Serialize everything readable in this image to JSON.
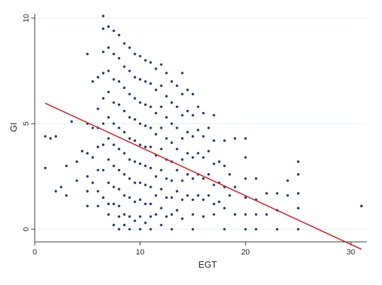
{
  "chart_data": {
    "type": "scatter",
    "title": "",
    "xlabel": "EGT",
    "ylabel": "GI",
    "xlim": [
      0,
      31.5
    ],
    "ylim": [
      -0.6,
      10.2
    ],
    "xticks": [
      0,
      10,
      20,
      30
    ],
    "yticks": [
      0,
      5,
      10
    ],
    "xtick_labels": [
      "0",
      "10",
      "20",
      "30"
    ],
    "ytick_labels": [
      "0",
      "5",
      "10"
    ],
    "grid": true,
    "legend": "none",
    "colors": {
      "points": "#1f3d6b",
      "fit_line": "#d42020",
      "grid": "#e3edf2",
      "axis": "#333333"
    },
    "series": [
      {
        "x": [
          1,
          1,
          1.5,
          2,
          2,
          2.5,
          3,
          3,
          3.5,
          4,
          4,
          4.5,
          5,
          5,
          5,
          5,
          5,
          5,
          5.5,
          5.5,
          5.5,
          5.5,
          6,
          6,
          6,
          6,
          6,
          6,
          6,
          6.5,
          6.5,
          6.5,
          6.5,
          6.5,
          6.5,
          6.5,
          6.5,
          6.5,
          7,
          7,
          7,
          7,
          7,
          7,
          7,
          7,
          7,
          7,
          7.5,
          7.5,
          7.5,
          7.5,
          7.5,
          7.5,
          7.5,
          7.5,
          7.5,
          7.5,
          8,
          8,
          8,
          8,
          8,
          8,
          8,
          8,
          8,
          8,
          8,
          8.5,
          8.5,
          8.5,
          8.5,
          8.5,
          8.5,
          8.5,
          8.5,
          8.5,
          8.5,
          9,
          9,
          9,
          9,
          9,
          9,
          9,
          9,
          9,
          9,
          9.5,
          9.5,
          9.5,
          9.5,
          9.5,
          9.5,
          9.5,
          9.5,
          9.5,
          10,
          10,
          10,
          10,
          10,
          10,
          10,
          10,
          10,
          10,
          10.5,
          10.5,
          10.5,
          10.5,
          10.5,
          10.5,
          10.5,
          10.5,
          10.5,
          11,
          11,
          11,
          11,
          11,
          11,
          11,
          11,
          11,
          11,
          11.5,
          11.5,
          11.5,
          11.5,
          11.5,
          11.5,
          11.5,
          11.5,
          12,
          12,
          12,
          12,
          12,
          12,
          12,
          12,
          12,
          12.5,
          12.5,
          12.5,
          12.5,
          12.5,
          12.5,
          12.5,
          12.5,
          13,
          13,
          13,
          13,
          13,
          13,
          13,
          13,
          13,
          13.5,
          13.5,
          13.5,
          13.5,
          13.5,
          13.5,
          13.5,
          14,
          14,
          14,
          14,
          14,
          14,
          14,
          14,
          14.5,
          14.5,
          14.5,
          14.5,
          14.5,
          14.5,
          15,
          15,
          15,
          15,
          15,
          15,
          15,
          15,
          15.5,
          15.5,
          15.5,
          15.5,
          15.5,
          16,
          16,
          16,
          16,
          16,
          16,
          16.5,
          16.5,
          16.5,
          16.5,
          17,
          17,
          17,
          17,
          17,
          17,
          17.5,
          17.5,
          17.5,
          18,
          18,
          18,
          18,
          18,
          18.5,
          18.5,
          19,
          19,
          19,
          20,
          20,
          20,
          20,
          20,
          20,
          21,
          21,
          21,
          21,
          22,
          22,
          23,
          23,
          23,
          24,
          24,
          25,
          25,
          25,
          25,
          25,
          31,
          31
        ],
        "y": [
          4.4,
          2.9,
          4.3,
          4.4,
          1.8,
          2,
          3,
          1.6,
          5.1,
          3.2,
          2.3,
          3.7,
          8.3,
          5,
          3.6,
          2.5,
          1.8,
          1.1,
          7,
          4.8,
          3.4,
          2.2,
          7.2,
          5.7,
          4.8,
          3.9,
          2.8,
          1.8,
          1.1,
          10.1,
          9.5,
          8.4,
          7.4,
          6.2,
          5,
          4,
          2.8,
          1.5,
          9.6,
          8.6,
          7.5,
          6.5,
          5.3,
          4.3,
          3.3,
          2.2,
          1.2,
          0.7,
          9.4,
          8.3,
          7.1,
          6,
          5,
          4,
          3,
          2,
          1.2,
          0.2,
          9.2,
          8.1,
          7,
          5.9,
          4.8,
          3.8,
          2.8,
          1.9,
          1.1,
          0.6,
          0,
          8.8,
          7.7,
          6.7,
          5.6,
          4.6,
          3.6,
          2.6,
          1.6,
          0.7,
          0.2,
          8.6,
          7.5,
          6.4,
          5.3,
          4.3,
          3.3,
          2.4,
          1.5,
          0.6,
          0,
          8.3,
          7.2,
          6.2,
          5.2,
          4.2,
          3.2,
          2.2,
          1.3,
          0.4,
          8.2,
          7.1,
          6,
          5,
          4,
          3.1,
          2.2,
          1.4,
          0.6,
          0,
          8,
          7,
          5.9,
          4.9,
          3.9,
          3,
          2.1,
          1.2,
          0.3,
          7.9,
          6.9,
          5.8,
          4.8,
          3.9,
          2.9,
          2,
          1.2,
          0.6,
          0,
          7.6,
          6.6,
          5.5,
          4.5,
          3.5,
          2.5,
          1.6,
          0.7,
          7.8,
          6.8,
          5.8,
          4.8,
          3.8,
          2.8,
          1.9,
          1,
          0.2,
          7.4,
          6.3,
          5.3,
          4.3,
          3.3,
          2.4,
          1.5,
          0.6,
          7,
          6,
          5,
          4.1,
          3.2,
          2.3,
          1.5,
          0.7,
          0,
          6.8,
          5.8,
          4.8,
          3.8,
          2.8,
          1.8,
          0.9,
          7.4,
          6.4,
          5.4,
          4.3,
          3.3,
          2.3,
          1.4,
          0.5,
          6.6,
          5.6,
          4.6,
          3.6,
          2.6,
          1.6,
          6.4,
          5.4,
          4.4,
          3.4,
          2.4,
          1.4,
          0.7,
          0,
          5.8,
          4.7,
          3.6,
          2.6,
          1.6,
          5.5,
          4.4,
          3.4,
          2.4,
          1.4,
          0.6,
          4.8,
          3.7,
          2.6,
          1.6,
          5.4,
          4.2,
          3.1,
          2.1,
          1.2,
          0.7,
          3.2,
          2.2,
          1.3,
          4.2,
          3,
          2,
          1,
          0,
          2.6,
          1.6,
          4.3,
          2,
          0.7,
          4.3,
          3.4,
          2.4,
          1.5,
          0.7,
          0,
          2.4,
          1.4,
          0.7,
          0,
          1.7,
          0.7,
          1.7,
          0.9,
          0,
          2.3,
          1.6,
          3.2,
          2.6,
          1.7,
          1,
          0,
          1.1,
          1.1
        ]
      }
    ],
    "fit_line": {
      "x": [
        1,
        31
      ],
      "y": [
        5.97,
        -0.95
      ]
    }
  }
}
